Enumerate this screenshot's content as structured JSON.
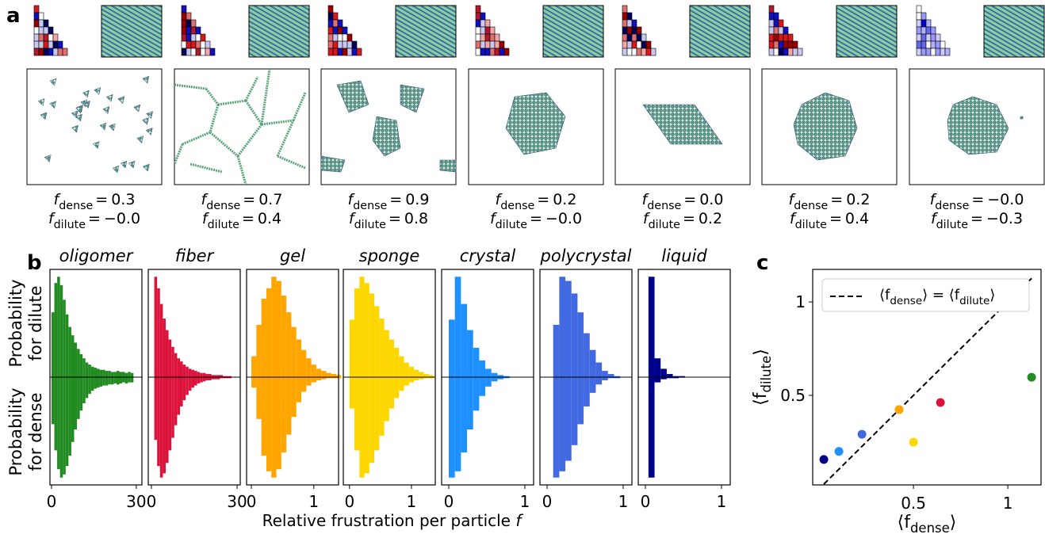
{
  "panel_labels": [
    "a",
    "b",
    "c"
  ],
  "panel_a": {
    "symbol": "f",
    "dense_sub": "dense",
    "dilute_sub": "dilute",
    "equals": "=",
    "items": [
      {
        "f_dense": "0.3",
        "f_dilute": "−0.0"
      },
      {
        "f_dense": "0.7",
        "f_dilute": "0.4"
      },
      {
        "f_dense": "0.9",
        "f_dilute": "0.8"
      },
      {
        "f_dense": "0.2",
        "f_dilute": "−0.0"
      },
      {
        "f_dense": "0.0",
        "f_dilute": "0.2"
      },
      {
        "f_dense": "0.2",
        "f_dilute": "0.4"
      },
      {
        "f_dense": "−0.0",
        "f_dilute": "−0.3"
      }
    ]
  },
  "panel_b": {
    "xlabel": [
      "Relative frustration per particle ",
      "f"
    ],
    "ylabel_dilute": [
      "Probability",
      "for dilute"
    ],
    "ylabel_dense": [
      "Probability",
      "for dense"
    ]
  },
  "chart_data": [
    {
      "type": "histogram",
      "title": "oligomer",
      "color": "#228b22",
      "xlim": [
        -0.56,
        32
      ],
      "xticks": [
        0,
        30
      ],
      "ylim": [
        0,
        1
      ],
      "bins": [
        0,
        1,
        2,
        3,
        4,
        5,
        6,
        7,
        8,
        9,
        10,
        11,
        12,
        13,
        14,
        15,
        16,
        17,
        18,
        19,
        20,
        21,
        22,
        23,
        24,
        25,
        26,
        27,
        28,
        29
      ],
      "dilute": [
        0.62,
        0.9,
        0.96,
        0.88,
        0.74,
        0.6,
        0.48,
        0.4,
        0.33,
        0.27,
        0.22,
        0.18,
        0.14,
        0.12,
        0.1,
        0.09,
        0.08,
        0.07,
        0.07,
        0.06,
        0.06,
        0.05,
        0.05,
        0.06,
        0.05,
        0.05,
        0.04,
        0.05,
        0.04
      ],
      "dense": [
        0.45,
        0.7,
        0.88,
        0.96,
        0.93,
        0.85,
        0.75,
        0.62,
        0.5,
        0.4,
        0.32,
        0.25,
        0.2,
        0.16,
        0.13,
        0.11,
        0.1,
        0.09,
        0.08,
        0.08,
        0.07,
        0.07,
        0.06,
        0.07,
        0.06,
        0.05,
        0.06,
        0.05,
        0.05
      ]
    },
    {
      "type": "histogram",
      "title": "fiber",
      "color": "#dc143c",
      "xlim": [
        -1.1,
        31.1
      ],
      "xticks": [
        0,
        30
      ],
      "ylim": [
        0,
        1
      ],
      "bins": [
        1,
        2,
        3,
        4,
        5,
        6,
        7,
        8,
        9,
        10,
        11,
        12,
        13,
        14,
        15,
        16,
        17,
        18,
        19,
        20,
        21,
        22,
        23,
        24,
        25,
        26,
        27,
        28
      ],
      "dilute": [
        0.96,
        0.85,
        0.7,
        0.56,
        0.45,
        0.36,
        0.29,
        0.23,
        0.18,
        0.15,
        0.12,
        0.1,
        0.08,
        0.07,
        0.06,
        0.05,
        0.04,
        0.04,
        0.03,
        0.03,
        0.02,
        0.02,
        0.02,
        0.02,
        0.01,
        0.01,
        0.01
      ],
      "dense": [
        0.6,
        0.85,
        0.96,
        0.92,
        0.82,
        0.7,
        0.58,
        0.46,
        0.36,
        0.28,
        0.22,
        0.17,
        0.13,
        0.1,
        0.08,
        0.06,
        0.05,
        0.04,
        0.03,
        0.03,
        0.02,
        0.02,
        0.02,
        0.01,
        0.01,
        0.01,
        0.01
      ]
    },
    {
      "type": "histogram",
      "title": "gel",
      "color": "#ffa500",
      "xlim": [
        -0.077,
        1.397
      ],
      "xticks": [
        0,
        1
      ],
      "ylim": [
        0,
        1
      ],
      "bins": [
        0,
        0.08,
        0.16,
        0.24,
        0.32,
        0.4,
        0.48,
        0.56,
        0.64,
        0.72,
        0.8,
        0.88,
        0.96,
        1.04,
        1.12,
        1.2,
        1.28,
        1.36,
        1.44
      ],
      "dilute": [
        0.2,
        0.5,
        0.75,
        0.85,
        0.96,
        0.92,
        0.78,
        0.62,
        0.48,
        0.36,
        0.26,
        0.18,
        0.12,
        0.08,
        0.06,
        0.04,
        0.03,
        0.02
      ],
      "dense": [
        0.1,
        0.4,
        0.75,
        0.9,
        0.96,
        0.88,
        0.72,
        0.55,
        0.38,
        0.24,
        0.14,
        0.08,
        0.05,
        0.03,
        0.02,
        0.01,
        0.01,
        0.01
      ]
    },
    {
      "type": "histogram",
      "title": "sponge",
      "color": "#ffd700",
      "xlim": [
        -0.1,
        1.385
      ],
      "xticks": [
        0,
        1
      ],
      "ylim": [
        0,
        1
      ],
      "bins": [
        0,
        0.08,
        0.16,
        0.24,
        0.32,
        0.4,
        0.48,
        0.56,
        0.64,
        0.72,
        0.8,
        0.88,
        0.96,
        1.04,
        1.12,
        1.2,
        1.28,
        1.36
      ],
      "dilute": [
        0.55,
        0.85,
        0.96,
        0.9,
        0.8,
        0.68,
        0.56,
        0.45,
        0.36,
        0.28,
        0.2,
        0.14,
        0.1,
        0.07,
        0.05,
        0.03,
        0.02
      ],
      "dense": [
        0.3,
        0.7,
        0.96,
        0.92,
        0.82,
        0.7,
        0.56,
        0.42,
        0.3,
        0.2,
        0.13,
        0.08,
        0.05,
        0.03,
        0.02,
        0.01,
        0.01
      ]
    },
    {
      "type": "histogram",
      "title": "crystal",
      "color": "#1e90ff",
      "xlim": [
        -0.094,
        1.115
      ],
      "xticks": [
        0,
        1
      ],
      "ylim": [
        0,
        1
      ],
      "bins": [
        0,
        0.08,
        0.16,
        0.24,
        0.32,
        0.4,
        0.48,
        0.56,
        0.64,
        0.72,
        0.8
      ],
      "dilute": [
        0.55,
        0.96,
        0.7,
        0.45,
        0.28,
        0.16,
        0.08,
        0.04,
        0.02,
        0.01
      ],
      "dense": [
        0.96,
        0.9,
        0.72,
        0.5,
        0.32,
        0.18,
        0.09,
        0.04,
        0.02,
        0.01
      ]
    },
    {
      "type": "histogram",
      "title": "polycrystal",
      "color": "#4169e1",
      "xlim": [
        -0.094,
        1.115
      ],
      "xticks": [
        0,
        1
      ],
      "ylim": [
        0,
        1
      ],
      "bins": [
        0.08,
        0.16,
        0.24,
        0.32,
        0.4,
        0.48,
        0.56,
        0.64,
        0.72,
        0.8,
        0.88,
        0.96
      ],
      "dilute": [
        0.5,
        0.96,
        0.92,
        0.8,
        0.62,
        0.42,
        0.26,
        0.14,
        0.06,
        0.03,
        0.01
      ],
      "dense": [
        0.96,
        0.9,
        0.8,
        0.65,
        0.45,
        0.28,
        0.15,
        0.07,
        0.03,
        0.01,
        0.01
      ]
    },
    {
      "type": "histogram",
      "title": "liquid",
      "color": "#00008b",
      "xlim": [
        -0.094,
        1.115
      ],
      "xticks": [
        0,
        1
      ],
      "ylim": [
        0,
        1
      ],
      "bins": [
        0.04,
        0.12,
        0.2,
        0.28,
        0.36,
        0.44,
        0.52
      ],
      "dilute": [
        0.96,
        0.18,
        0.08,
        0.03,
        0.01,
        0.01
      ],
      "dense": [
        0.96,
        0.05,
        0.02,
        0.01,
        0.01,
        0.005
      ]
    },
    {
      "type": "scatter",
      "xlim": [
        -0.034,
        1.176
      ],
      "ylim": [
        0.021,
        1.174
      ],
      "xticks": [
        0.5,
        1
      ],
      "yticks": [
        0.5,
        1
      ],
      "x": [
        0.025,
        0.105,
        0.227,
        0.424,
        0.5,
        0.643,
        1.126
      ],
      "y": [
        0.157,
        0.2,
        0.292,
        0.424,
        0.25,
        0.462,
        0.597
      ],
      "colors": [
        "#00008b",
        "#1e90ff",
        "#4169e1",
        "#ffa500",
        "#ffd700",
        "#dc143c",
        "#228b22"
      ],
      "xlabel": [
        "⟨f",
        "dense",
        "⟩"
      ],
      "ylabel": [
        "⟨f",
        "dilute",
        "⟩"
      ],
      "legend": [
        "⟨f",
        "dense",
        "⟩ = ⟨f",
        "dilute",
        "⟩"
      ],
      "legend_loc": "upper left"
    }
  ]
}
